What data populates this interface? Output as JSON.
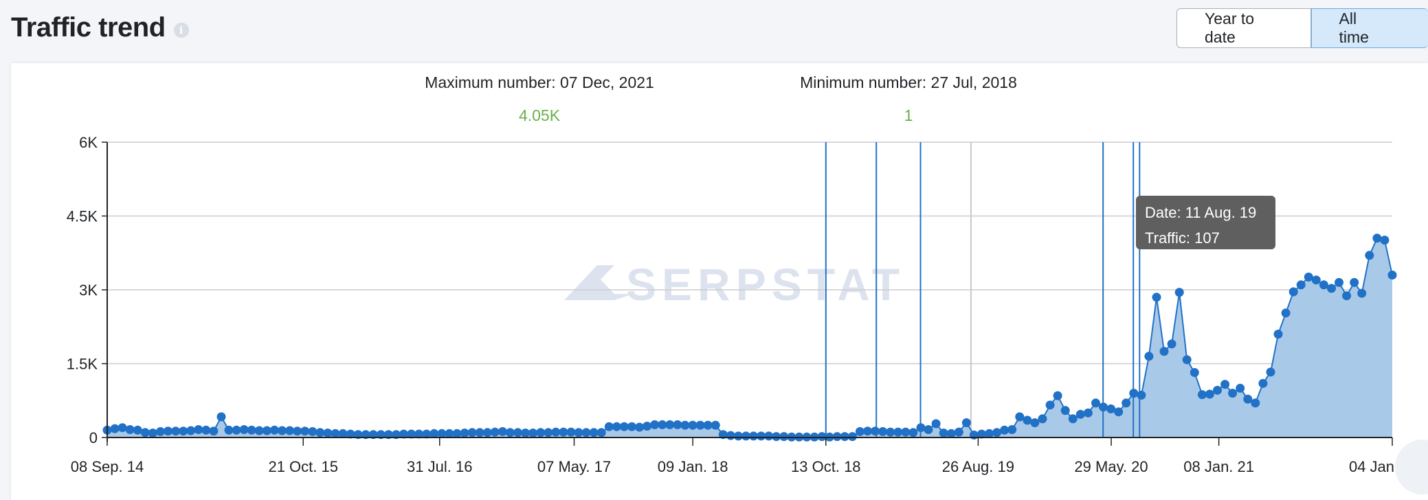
{
  "header": {
    "title": "Traffic trend",
    "info_icon": "info-icon",
    "tabs": [
      {
        "label": "Year to date",
        "active": false
      },
      {
        "label": "All time",
        "active": true
      }
    ]
  },
  "stats": {
    "max_label": "Maximum number: 07 Dec, 2021",
    "max_value": "4.05K",
    "min_label": "Minimum number: 27 Jul, 2018",
    "min_value": "1"
  },
  "watermark": "SERPSTAT",
  "tooltip": {
    "date_line": "Date: 11 Aug. 19",
    "traffic_line": "Traffic: 107"
  },
  "colors": {
    "line": "#2171c7",
    "area": "#a9c9e8",
    "value_green": "#6ab04c",
    "tooltip_bg": "#5f5f5f",
    "grid": "#cccccc"
  },
  "chart_data": {
    "type": "area",
    "title": "Traffic trend",
    "xlabel": "",
    "ylabel": "",
    "x_range": [
      "2014-09-08",
      "2022-01-04"
    ],
    "ylim": [
      0,
      6000
    ],
    "y_ticks": [
      0,
      1500,
      3000,
      4500,
      6000
    ],
    "y_tick_labels": [
      "0",
      "1.5K",
      "3K",
      "4.5K",
      "6K"
    ],
    "x_ticks": [
      {
        "date": "2014-09-08",
        "label": "08 Sep. 14"
      },
      {
        "date": "2015-10-21",
        "label": "21 Oct. 15"
      },
      {
        "date": "2016-07-31",
        "label": "31 Jul. 16"
      },
      {
        "date": "2017-05-07",
        "label": "07 May. 17"
      },
      {
        "date": "2018-01-09",
        "label": "09 Jan. 18"
      },
      {
        "date": "2018-10-13",
        "label": "13 Oct. 18"
      },
      {
        "date": "2019-08-26",
        "label": "26 Aug. 19"
      },
      {
        "date": "2020-05-29",
        "label": "29 May. 20"
      },
      {
        "date": "2021-01-08",
        "label": "08 Jan. 21"
      },
      {
        "date": "2022-01-04",
        "label": "04 Jan"
      }
    ],
    "grid": true,
    "legend": "none",
    "event_lines": [
      "2018-10-13",
      "2019-01-26",
      "2019-04-28",
      "2020-05-12",
      "2020-07-14",
      "2020-07-27"
    ],
    "hover_line": "2019-08-11",
    "series": [
      {
        "values": [
          150,
          180,
          200,
          160,
          150,
          100,
          90,
          120,
          130,
          130,
          130,
          140,
          160,
          150,
          130,
          420,
          150,
          150,
          160,
          150,
          140,
          140,
          150,
          140,
          140,
          130,
          130,
          120,
          100,
          90,
          80,
          80,
          70,
          60,
          60,
          60,
          60,
          60,
          60,
          70,
          70,
          70,
          70,
          80,
          80,
          80,
          80,
          90,
          100,
          100,
          100,
          110,
          120,
          100,
          100,
          90,
          90,
          100,
          100,
          110,
          110,
          110,
          100,
          100,
          100,
          100,
          220,
          220,
          220,
          220,
          210,
          230,
          260,
          260,
          260,
          260,
          250,
          250,
          250,
          250,
          250,
          60,
          40,
          30,
          30,
          30,
          30,
          30,
          20,
          20,
          10,
          10,
          10,
          10,
          20,
          10,
          20,
          20,
          20,
          120,
          130,
          130,
          120,
          110,
          110,
          110,
          100,
          200,
          160,
          280,
          90,
          80,
          110,
          300,
          50,
          70,
          80,
          100,
          150,
          160,
          420,
          350,
          300,
          380,
          660,
          850,
          550,
          380,
          470,
          500,
          700,
          620,
          580,
          520,
          700,
          900,
          860,
          1650,
          2850,
          1750,
          1900,
          2950,
          1580,
          1320,
          870,
          880,
          960,
          1080,
          900,
          1000,
          780,
          700,
          1100,
          1330,
          2100,
          2530,
          2960,
          3100,
          3260,
          3200,
          3100,
          3030,
          3150,
          2880,
          3150,
          2930,
          3700,
          4050,
          4010,
          3300
        ]
      }
    ]
  }
}
